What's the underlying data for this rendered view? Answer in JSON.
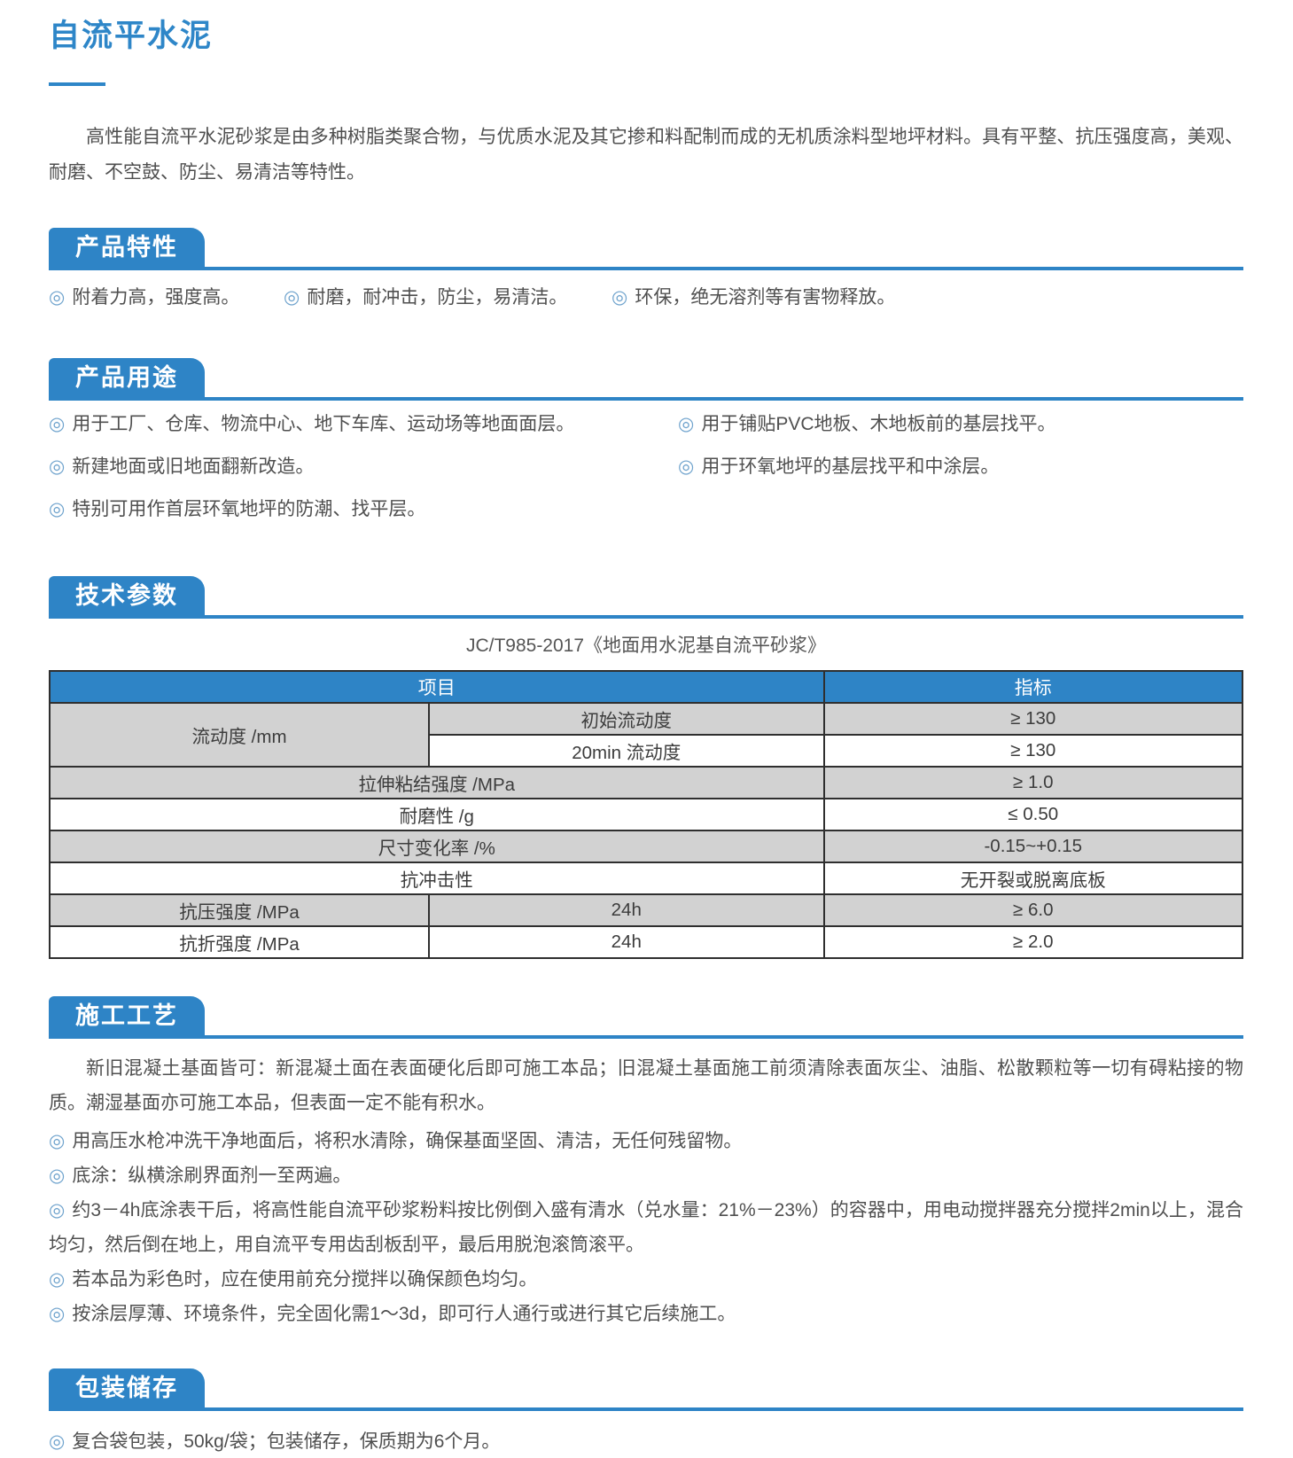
{
  "icons": {
    "bullet": "◎"
  },
  "colors": {
    "accent_blue": "#2e84c6",
    "title_blue": "#2e86c8",
    "table_row_gray": "#d2d2d2",
    "bullet_blue": "#6fa3cd",
    "table_border": "#2f2f2f"
  },
  "page": {
    "title": "自流平水泥",
    "intro": "高性能自流平水泥砂浆是由多种树脂类聚合物，与优质水泥及其它掺和料配制而成的无机质涂料型地坪材料。具有平整、抗压强度高，美观、耐磨、不空鼓、防尘、易清洁等特性。"
  },
  "sections": {
    "features": {
      "heading": "产品特性",
      "items": [
        "附着力高，强度高。",
        "耐磨，耐冲击，防尘，易清洁。",
        "环保，绝无溶剂等有害物释放。"
      ]
    },
    "uses": {
      "heading": "产品用途",
      "left_items": [
        "用于工厂、仓库、物流中心、地下车库、运动场等地面面层。",
        "新建地面或旧地面翻新改造。",
        "特别可用作首层环氧地坪的防潮、找平层。"
      ],
      "right_items": [
        "用于铺贴PVC地板、木地板前的基层找平。",
        "用于环氧地坪的基层找平和中涂层。"
      ]
    },
    "tech": {
      "heading": "技术参数",
      "caption": "JC/T985-2017《地面用水泥基自流平砂浆》",
      "table": {
        "header": {
          "item": "项目",
          "index": "指标"
        },
        "rows": [
          {
            "group": "流动度 /mm",
            "sub": "初始流动度",
            "value": "≥ 130"
          },
          {
            "sub": "20min 流动度",
            "value": "≥ 130"
          },
          {
            "name": "拉伸粘结强度 /MPa",
            "value": "≥ 1.0"
          },
          {
            "name": "耐磨性 /g",
            "value": "≤ 0.50"
          },
          {
            "name": "尺寸变化率 /%",
            "value": "-0.15~+0.15"
          },
          {
            "name": "抗冲击性",
            "value": "无开裂或脱离底板"
          },
          {
            "name": "抗压强度 /MPa",
            "sub": "24h",
            "value": "≥ 6.0"
          },
          {
            "name": "抗折强度 /MPa",
            "sub": "24h",
            "value": "≥ 2.0"
          }
        ]
      }
    },
    "process": {
      "heading": "施工工艺",
      "paragraph": "新旧混凝土基面皆可：新混凝土面在表面硬化后即可施工本品；旧混凝土基面施工前须清除表面灰尘、油脂、松散颗粒等一切有碍粘接的物质。潮湿基面亦可施工本品，但表面一定不能有积水。",
      "items": [
        "用高压水枪冲洗干净地面后，将积水清除，确保基面坚固、清洁，无任何残留物。",
        "底涂：纵横涂刷界面剂一至两遍。",
        "约3－4h底涂表干后，将高性能自流平砂浆粉料按比例倒入盛有清水（兑水量：21%－23%）的容器中，用电动搅拌器充分搅拌2min以上，混合均匀，然后倒在地上，用自流平专用齿刮板刮平，最后用脱泡滚筒滚平。",
        "若本品为彩色时，应在使用前充分搅拌以确保颜色均匀。",
        "按涂层厚薄、环境条件，完全固化需1～3d，即可行人通行或进行其它后续施工。"
      ]
    },
    "packaging": {
      "heading": "包装储存",
      "items": [
        "复合袋包装，50kg/袋；包装储存，保质期为6个月。"
      ]
    }
  }
}
